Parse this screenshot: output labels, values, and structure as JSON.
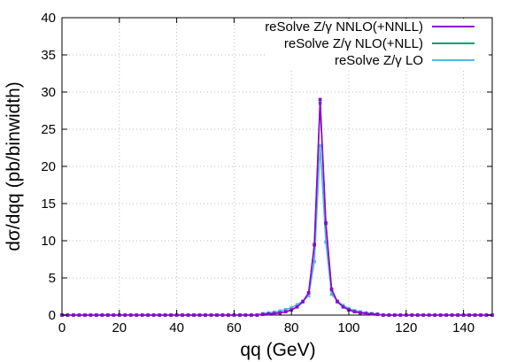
{
  "chart_data": {
    "type": "line",
    "title": "",
    "xlabel": "qq (GeV)",
    "ylabel": "dσ/dqq (pb/binwidth)",
    "xlim": [
      0,
      150
    ],
    "ylim": [
      0,
      40
    ],
    "xticks": [
      0,
      20,
      40,
      60,
      80,
      100,
      120,
      140
    ],
    "yticks": [
      0,
      5,
      10,
      15,
      20,
      25,
      30,
      35,
      40
    ],
    "grid": true,
    "legend_position": "top-right",
    "x": [
      0,
      2,
      4,
      6,
      8,
      10,
      12,
      14,
      16,
      18,
      20,
      22,
      24,
      26,
      28,
      30,
      32,
      34,
      36,
      38,
      40,
      42,
      44,
      46,
      48,
      50,
      52,
      54,
      56,
      58,
      60,
      62,
      64,
      66,
      68,
      70,
      72,
      74,
      76,
      78,
      80,
      82,
      84,
      86,
      88,
      90,
      92,
      94,
      96,
      98,
      100,
      102,
      104,
      106,
      108,
      110,
      112,
      114,
      116,
      118,
      120,
      122,
      124,
      126,
      128,
      130,
      132,
      134,
      136,
      138,
      140,
      142,
      144,
      146,
      148,
      150
    ],
    "series": [
      {
        "name": "reSolve Z/γ NNLO(+NNLL)",
        "color": "#9400d3",
        "values": [
          0,
          0,
          0,
          0,
          0,
          0,
          0,
          0,
          0,
          0,
          0,
          0,
          0,
          0,
          0,
          0,
          0,
          0,
          0,
          0,
          0,
          0,
          0,
          0,
          0,
          0,
          0,
          0,
          0,
          0,
          0,
          0,
          0,
          0,
          0,
          0.1,
          0.15,
          0.2,
          0.3,
          0.45,
          0.7,
          1.1,
          1.8,
          3.0,
          9.5,
          29.0,
          12.4,
          3.5,
          1.8,
          1.1,
          0.7,
          0.45,
          0.3,
          0.2,
          0.15,
          0.1,
          0,
          0,
          0,
          0,
          0,
          0,
          0,
          0,
          0,
          0,
          0,
          0,
          0,
          0,
          0,
          0,
          0,
          0,
          0,
          0
        ]
      },
      {
        "name": "reSolve Z/γ NLO(+NLL)",
        "color": "#009e73",
        "values": [
          0,
          0,
          0,
          0,
          0,
          0,
          0,
          0,
          0,
          0,
          0,
          0,
          0,
          0,
          0,
          0,
          0,
          0,
          0,
          0,
          0,
          0,
          0,
          0,
          0,
          0,
          0,
          0,
          0,
          0,
          0,
          0,
          0,
          0,
          0,
          0.1,
          0.15,
          0.2,
          0.3,
          0.45,
          0.7,
          1.1,
          1.8,
          3.0,
          9.4,
          28.5,
          12.3,
          3.4,
          1.8,
          1.1,
          0.7,
          0.45,
          0.3,
          0.2,
          0.15,
          0.1,
          0,
          0,
          0,
          0,
          0,
          0,
          0,
          0,
          0,
          0,
          0,
          0,
          0,
          0,
          0,
          0,
          0,
          0,
          0,
          0
        ]
      },
      {
        "name": "reSolve Z/γ LO",
        "color": "#56b4e9",
        "values": [
          0,
          0,
          0,
          0,
          0,
          0,
          0,
          0,
          0,
          0,
          0,
          0,
          0,
          0,
          0,
          0,
          0,
          0,
          0,
          0,
          0,
          0,
          0,
          0,
          0,
          0,
          0,
          0,
          0,
          0,
          0,
          0,
          0,
          0,
          0,
          0.2,
          0.3,
          0.4,
          0.55,
          0.75,
          1.0,
          1.4,
          1.9,
          2.6,
          7.2,
          22.8,
          9.8,
          2.8,
          1.9,
          1.3,
          0.9,
          0.6,
          0.45,
          0.3,
          0.2,
          0.15,
          0,
          0,
          0,
          0,
          0,
          0,
          0,
          0,
          0,
          0,
          0,
          0,
          0,
          0,
          0,
          0,
          0,
          0,
          0,
          0
        ]
      }
    ]
  }
}
